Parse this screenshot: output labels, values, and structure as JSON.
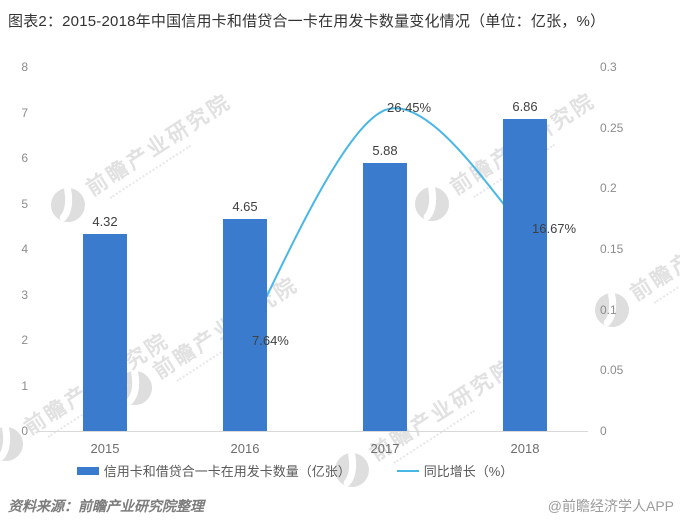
{
  "title": "图表2：2015-2018年中国信用卡和借贷合一卡在用发卡数量变化情况（单位：亿张，%）",
  "watermark": {
    "text": "前瞻产业研究院"
  },
  "legend": {
    "bar_label": "信用卡和借贷合一卡在用发卡数量（亿张）",
    "line_label": "同比增长（%）"
  },
  "footer": {
    "source": "资料来源：前瞻产业研究院整理",
    "brand": "@前瞻经济学人APP"
  },
  "colors": {
    "bar": "#3a7bcd",
    "line": "#48b7e8",
    "axis_line": "#d9d9d9",
    "tick_text": "#8c8c8c",
    "label_text": "#404040"
  },
  "chart_data": {
    "type": "bar",
    "subtype": "bar+line combo",
    "title": "图表2：2015-2018年中国信用卡和借贷合一卡在用发卡数量变化情况（单位：亿张，%）",
    "categories": [
      "2015",
      "2016",
      "2017",
      "2018"
    ],
    "series": [
      {
        "name": "信用卡和借贷合一卡在用发卡数量（亿张）",
        "type": "bar",
        "axis": "left",
        "color": "#3a7bcd",
        "values": [
          4.32,
          4.65,
          5.88,
          6.86
        ],
        "labels": [
          "4.32",
          "4.65",
          "5.88",
          "6.86"
        ]
      },
      {
        "name": "同比增长（%）",
        "type": "line",
        "axis": "right",
        "color": "#48b7e8",
        "values": [
          null,
          0.0764,
          0.2645,
          0.1667
        ],
        "labels": [
          null,
          "7.64%",
          "26.45%",
          "16.67%"
        ]
      }
    ],
    "left_axis": {
      "min": 0,
      "max": 8,
      "ticks": [
        "0",
        "1",
        "2",
        "3",
        "4",
        "5",
        "6",
        "7",
        "8"
      ]
    },
    "right_axis": {
      "min": 0,
      "max": 0.3,
      "ticks": [
        "0",
        "0.05",
        "0.1",
        "0.15",
        "0.2",
        "0.25",
        "0.3"
      ]
    },
    "grid": false,
    "legend_position": "bottom"
  }
}
